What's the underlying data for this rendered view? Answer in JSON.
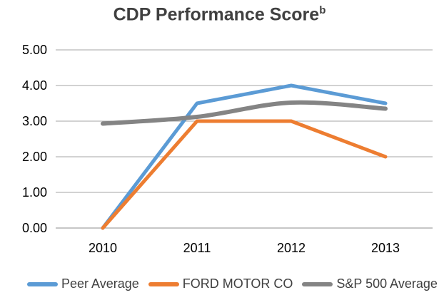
{
  "title": {
    "text": "CDP Performance Score",
    "superscript": "b"
  },
  "chart_data": {
    "type": "line",
    "title": "CDP Performance Score (superscript b)",
    "categories": [
      "2010",
      "2011",
      "2012",
      "2013"
    ],
    "series": [
      {
        "name": "Peer Average",
        "color": "#5B9BD5",
        "values": [
          0.0,
          3.5,
          4.0,
          3.5
        ],
        "smooth": false,
        "line_width": 5
      },
      {
        "name": "FORD MOTOR CO",
        "color": "#ED7D31",
        "values": [
          0.0,
          3.0,
          3.0,
          2.0
        ],
        "smooth": false,
        "line_width": 5
      },
      {
        "name": "S&P 500 Average",
        "color": "#848484",
        "values": [
          2.93,
          3.12,
          3.52,
          3.35
        ],
        "smooth": true,
        "line_width": 6
      }
    ],
    "xlabel": "",
    "ylabel": "",
    "ylim": [
      0,
      5
    ],
    "yticks": [
      0,
      1,
      2,
      3,
      4,
      5
    ],
    "ytick_labels": [
      "0.00",
      "1.00",
      "2.00",
      "3.00",
      "4.00",
      "5.00"
    ],
    "grid": true,
    "legend_position": "bottom"
  },
  "colors": {
    "background": "#FFFFFF",
    "gridline": "#A6A6A6",
    "axis_line": "#8C8C8C",
    "title_text": "#404040",
    "tick_text": "#000000",
    "legend_text": "#404040"
  }
}
